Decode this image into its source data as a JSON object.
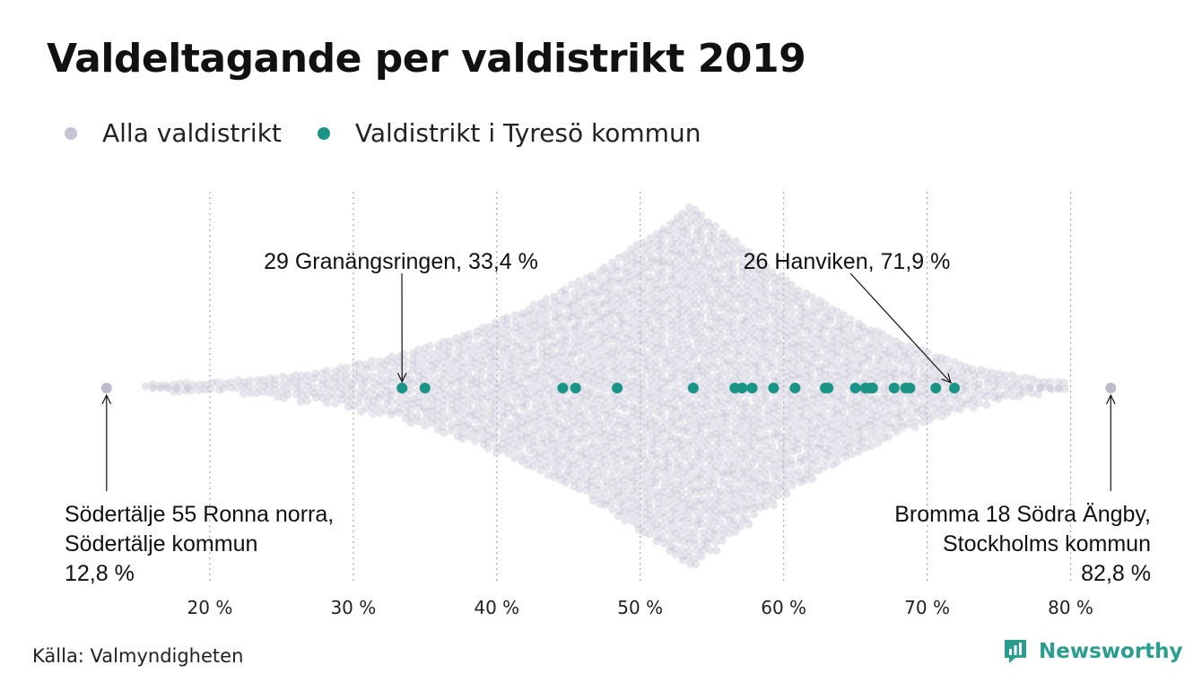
{
  "title": "Valdeltagande per valdistrikt 2019",
  "legend": [
    {
      "label": "Alla valdistrikt",
      "color": "#c5c3d4"
    },
    {
      "label": "Valdistrikt i Tyresö kommun",
      "color": "#1a9487"
    }
  ],
  "source": "Källa: Valmyndigheten",
  "brand": "Newsworthy",
  "colors": {
    "all": "#c5c3d4",
    "tyreso": "#1a9487",
    "brand": "#2a9d8f"
  },
  "chart_data": {
    "type": "scatter",
    "xlim": [
      12.8,
      82.8
    ],
    "x_ticks": [
      {
        "value": 20,
        "label": "20 %"
      },
      {
        "value": 30,
        "label": "30 %"
      },
      {
        "value": 40,
        "label": "40 %"
      },
      {
        "value": 50,
        "label": "50 %"
      },
      {
        "value": 60,
        "label": "60 %"
      },
      {
        "value": 70,
        "label": "70 %"
      },
      {
        "value": 80,
        "label": "80 %"
      }
    ],
    "grid": "vertical dotted",
    "series": [
      {
        "name": "Alla valdistrikt",
        "min": 12.8,
        "max": 82.8,
        "mode": 53.6
      },
      {
        "name": "Valdistrikt i Tyresö kommun",
        "values": [
          33.4,
          35.0,
          44.6,
          45.5,
          48.4,
          53.7,
          56.6,
          57.1,
          57.8,
          59.3,
          60.8,
          62.9,
          63.1,
          65.0,
          65.7,
          66.0,
          66.2,
          67.7,
          68.5,
          68.8,
          70.6,
          71.9
        ]
      }
    ],
    "annotations": [
      {
        "lines": [
          "29 Granängsringen, 33,4 %"
        ],
        "x": 33.4,
        "align": "center"
      },
      {
        "lines": [
          "26 Hanviken, 71,9 %"
        ],
        "x": 71.9,
        "align": "center"
      },
      {
        "lines": [
          "Södertälje 55 Ronna norra,",
          "Södertälje kommun",
          "12,8 %"
        ],
        "x": 12.8,
        "align": "left"
      },
      {
        "lines": [
          "Bromma 18 Södra Ängby,",
          "Stockholms kommun",
          "82,8 %"
        ],
        "x": 82.8,
        "align": "right"
      }
    ]
  }
}
